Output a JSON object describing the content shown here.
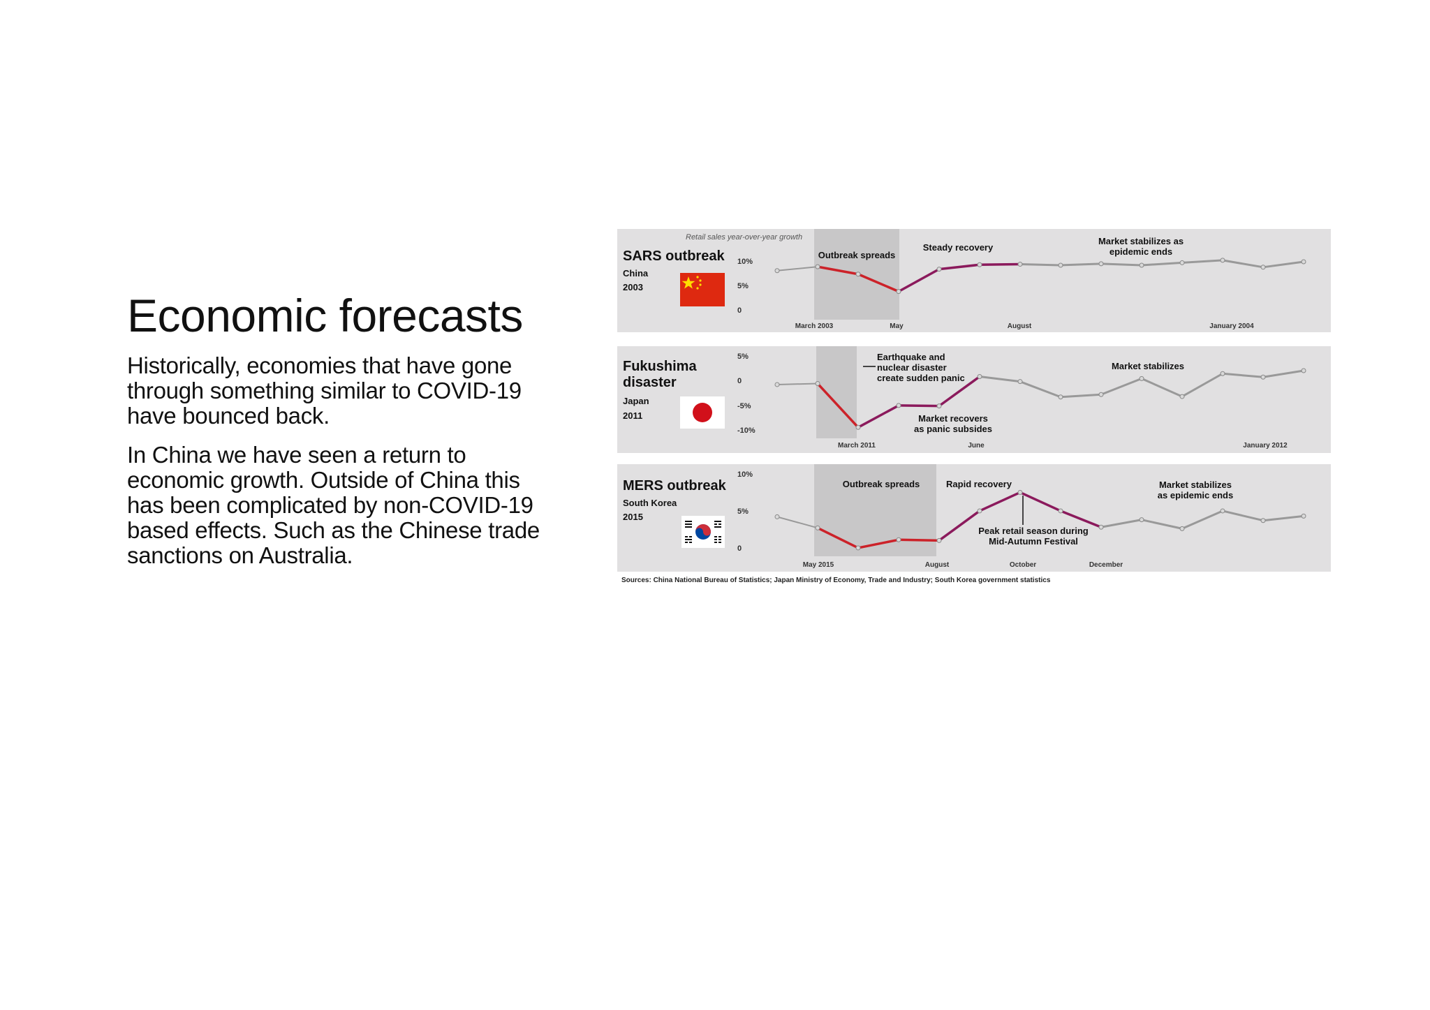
{
  "slide": {
    "title": "Economic forecasts",
    "paragraphs": [
      "Historically, economies that have gone through something similar to COVID-19 have bounced back.",
      "In China we have seen a return to economic growth. Outside of China this has been complicated by non-COVID-19 based effects. Such as the Chinese trade sanctions on Australia."
    ]
  },
  "chart_meta": {
    "ylabel": "Retail sales year-over-year growth",
    "sources": "Sources: China National Bureau of Statistics; Japan Ministry of Economy, Trade and Industry; South Korea government statistics",
    "colors": {
      "panel": "#e1e0e1",
      "shade": "#c8c7c8",
      "outbreak": "#cc2229",
      "recovery": "#8b1a5c",
      "stable": "#999999"
    }
  },
  "chart_data": [
    {
      "type": "line",
      "event": "SARS outbreak",
      "country": "China",
      "year": "2003",
      "flag_icon": "china-flag-icon",
      "yticks": [
        "10%",
        "5%",
        "0"
      ],
      "ylim": [
        0,
        10
      ],
      "x_labels": [
        "March 2003",
        "May",
        "August",
        "January 2004"
      ],
      "values": [
        8.2,
        9.0,
        7.5,
        4.0,
        8.5,
        9.4,
        9.5,
        9.3,
        9.6,
        9.3,
        9.8,
        10.3,
        8.9,
        10.0
      ],
      "segments": {
        "outbreak": [
          1,
          3
        ],
        "recovery": [
          3,
          6
        ]
      },
      "annotations": [
        "Outbreak spreads",
        "Steady recovery",
        "Market stabilizes as",
        "epidemic ends"
      ]
    },
    {
      "type": "line",
      "event_lines": [
        "Fukushima",
        "disaster"
      ],
      "country": "Japan",
      "year": "2011",
      "flag_icon": "japan-flag-icon",
      "yticks": [
        "5%",
        "0",
        "-5%",
        "-10%"
      ],
      "ylim": [
        -10,
        5
      ],
      "x_labels": [
        "March 2011",
        "June",
        "January 2012"
      ],
      "values": [
        -0.6,
        -0.4,
        -9.2,
        -4.8,
        -4.9,
        1.0,
        0.0,
        -3.1,
        -2.6,
        0.6,
        -3.0,
        1.6,
        0.9,
        2.2
      ],
      "segments": {
        "outbreak": [
          1,
          2
        ],
        "recovery": [
          2,
          5
        ]
      },
      "annotations": [
        "Earthquake and",
        "nuclear disaster",
        "create sudden panic",
        "Market recovers",
        "as panic subsides",
        "Market stabilizes"
      ]
    },
    {
      "type": "line",
      "event": "MERS outbreak",
      "country": "South Korea",
      "year": "2015",
      "flag_icon": "korea-flag-icon",
      "yticks": [
        "10%",
        "5%",
        "0"
      ],
      "ylim": [
        0,
        10
      ],
      "x_labels": [
        "May 2015",
        "August",
        "October",
        "December"
      ],
      "values": [
        4.3,
        2.8,
        0.1,
        1.2,
        1.1,
        5.1,
        7.6,
        5.1,
        2.9,
        3.9,
        2.7,
        5.1,
        3.8,
        4.4
      ],
      "segments": {
        "outbreak": [
          1,
          4
        ],
        "recovery": [
          4,
          8
        ]
      },
      "annotations": [
        "Outbreak spreads",
        "Rapid recovery",
        "Peak retail season during",
        "Mid-Autumn Festival",
        "Market stabilizes",
        "as epidemic ends"
      ]
    }
  ]
}
